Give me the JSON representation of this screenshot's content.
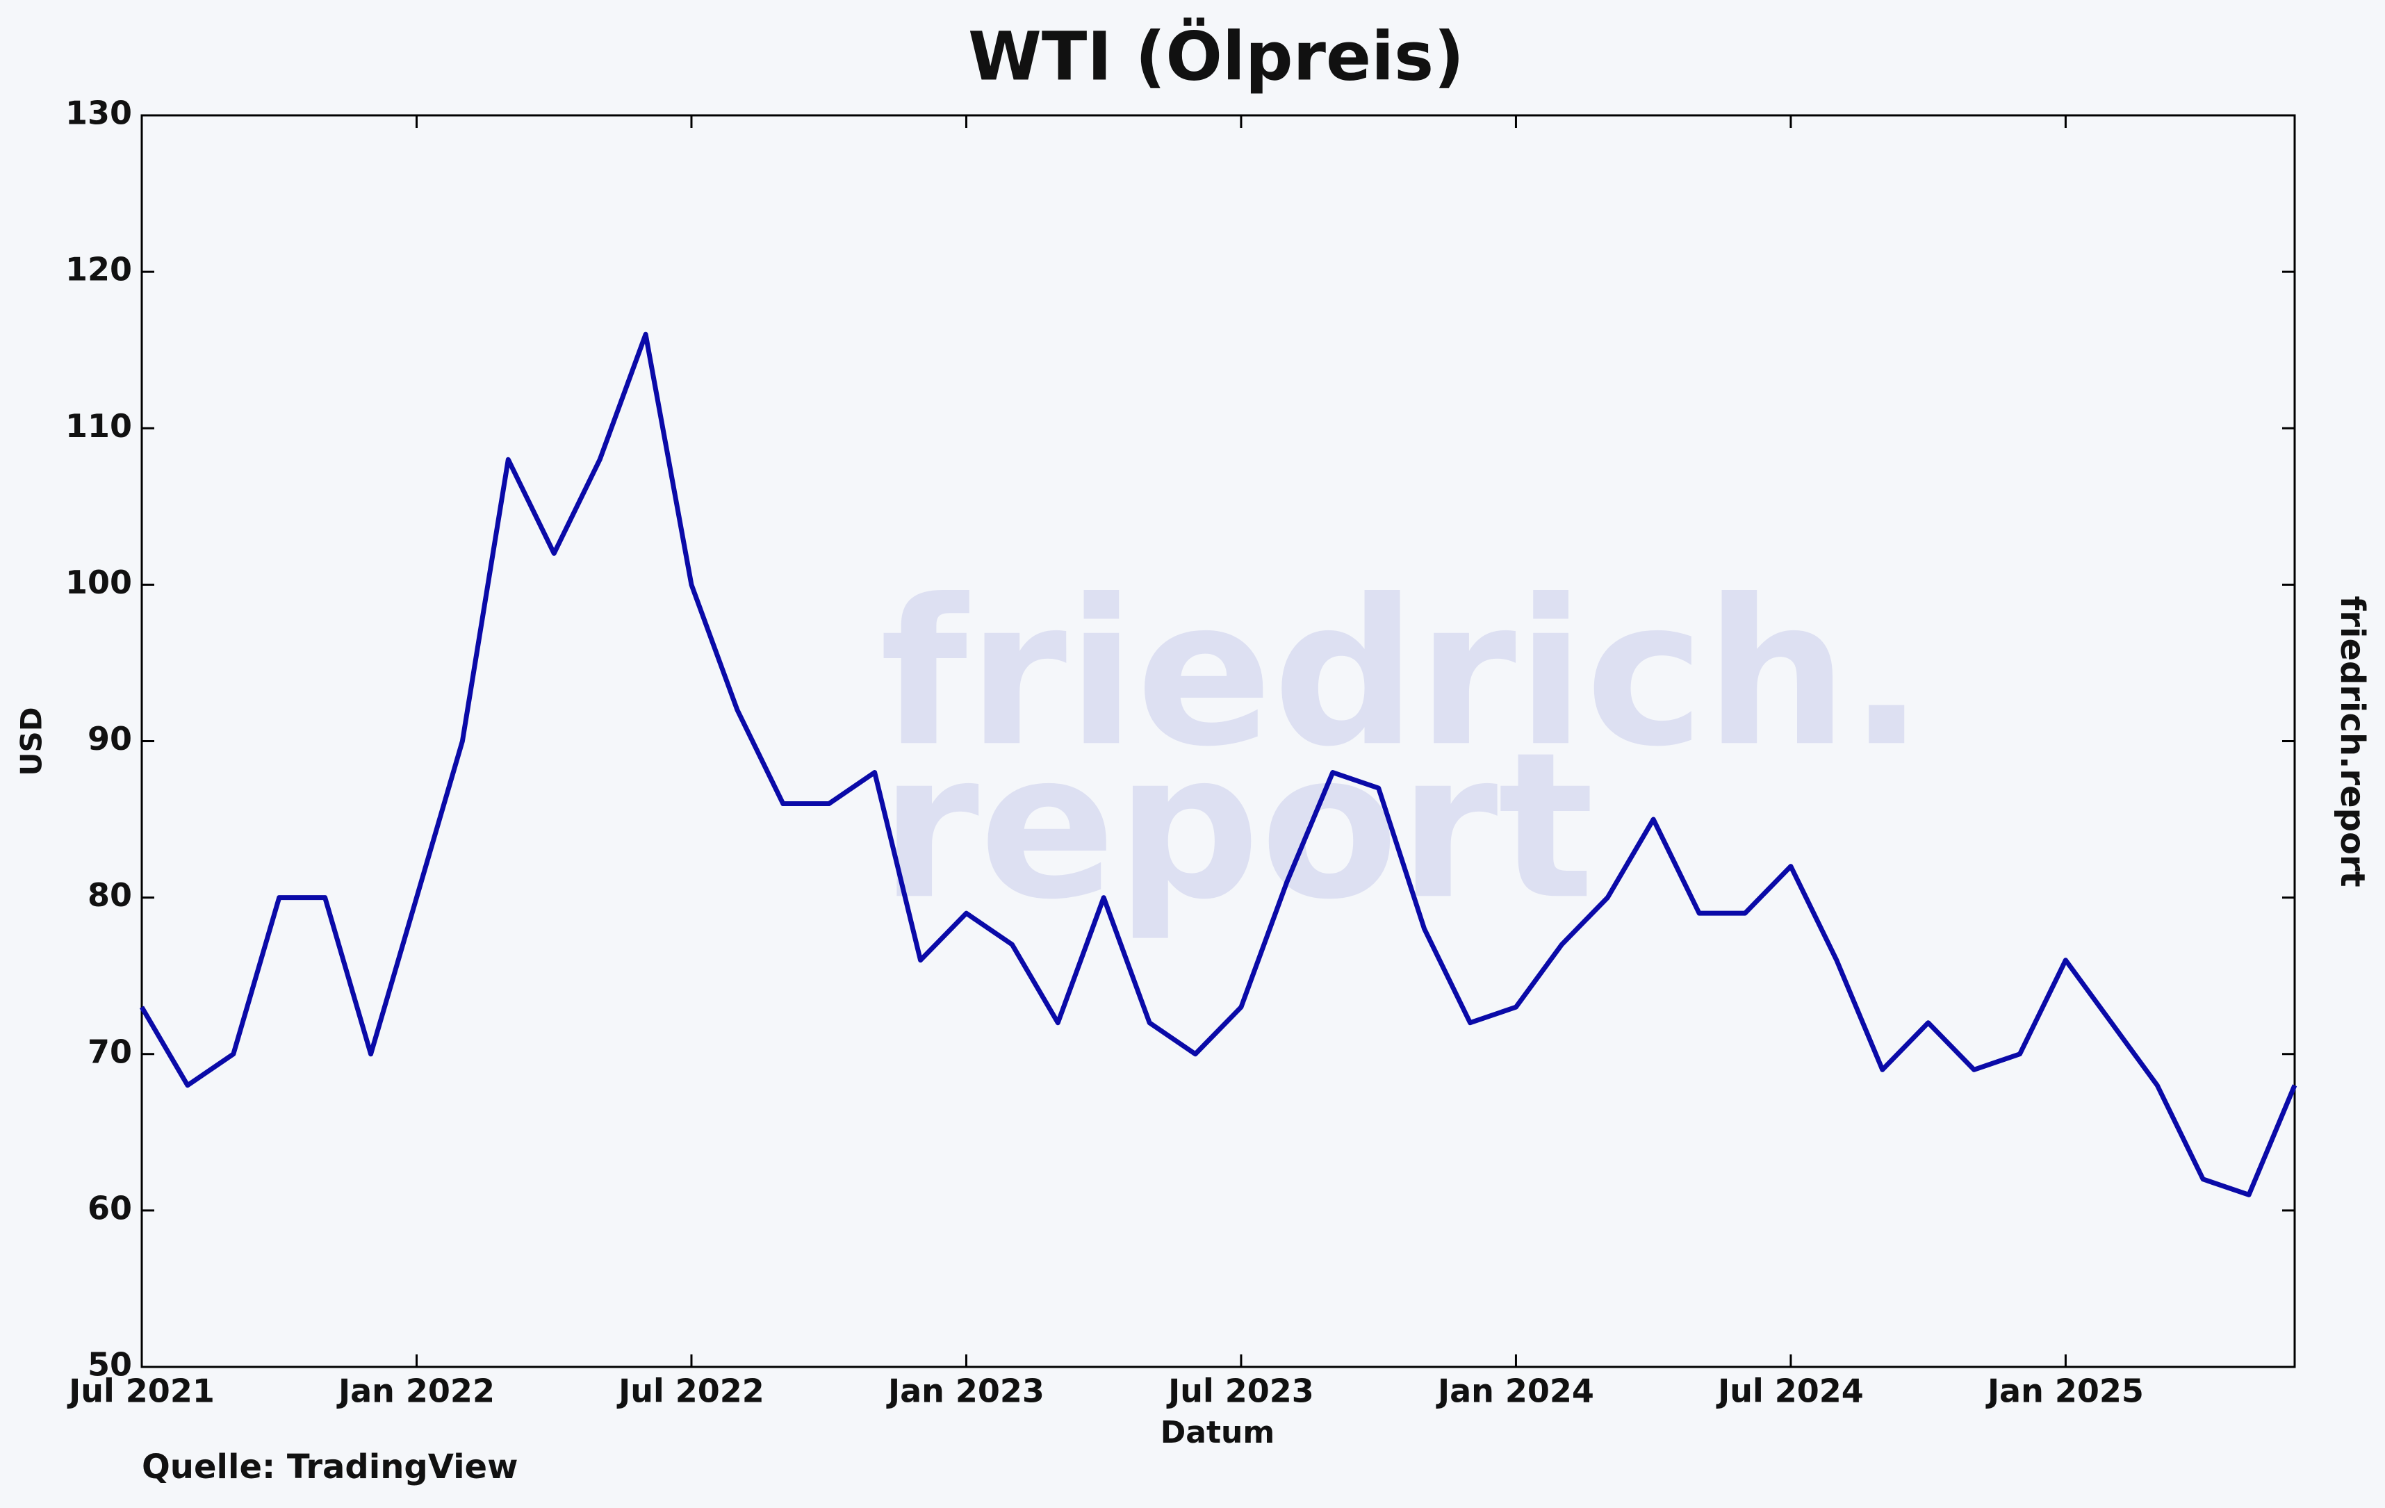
{
  "chart_data": {
    "type": "line",
    "title": "WTI (Ölpreis)",
    "y_label": "USD",
    "x_label": "Datum",
    "source": "Quelle: TradingView",
    "side_label": "friedrich.report",
    "watermark": [
      "friedrich.",
      "report"
    ],
    "x": [
      "2021-07",
      "2021-08",
      "2021-09",
      "2021-10",
      "2021-11",
      "2021-12",
      "2022-01",
      "2022-02",
      "2022-03",
      "2022-04",
      "2022-05",
      "2022-06",
      "2022-07",
      "2022-08",
      "2022-09",
      "2022-10",
      "2022-11",
      "2022-12",
      "2023-01",
      "2023-02",
      "2023-03",
      "2023-04",
      "2023-05",
      "2023-06",
      "2023-07",
      "2023-08",
      "2023-09",
      "2023-10",
      "2023-11",
      "2023-12",
      "2024-01",
      "2024-02",
      "2024-03",
      "2024-04",
      "2024-05",
      "2024-06",
      "2024-07",
      "2024-08",
      "2024-09",
      "2024-10",
      "2024-11",
      "2024-12",
      "2025-01",
      "2025-02",
      "2025-03",
      "2025-04",
      "2025-05",
      "2025-06"
    ],
    "series": [
      {
        "name": "WTI",
        "color": "#0a0aa8",
        "values": [
          73,
          68,
          70,
          80,
          80,
          70,
          80,
          90,
          108,
          102,
          108,
          116,
          100,
          92,
          86,
          86,
          88,
          76,
          79,
          77,
          72,
          80,
          72,
          70,
          73,
          81,
          88,
          87,
          78,
          72,
          73,
          77,
          80,
          85,
          79,
          79,
          82,
          76,
          69,
          72,
          69,
          70,
          76,
          72,
          68,
          62,
          61,
          68
        ]
      }
    ],
    "xlim": [
      "2021-07",
      "2025-06"
    ],
    "xticks": [
      {
        "value": "2021-07",
        "label": "Jul 2021"
      },
      {
        "value": "2022-01",
        "label": "Jan 2022"
      },
      {
        "value": "2022-07",
        "label": "Jul 2022"
      },
      {
        "value": "2023-01",
        "label": "Jan 2023"
      },
      {
        "value": "2023-07",
        "label": "Jul 2023"
      },
      {
        "value": "2024-01",
        "label": "Jan 2024"
      },
      {
        "value": "2024-07",
        "label": "Jul 2024"
      },
      {
        "value": "2025-01",
        "label": "Jan 2025"
      }
    ],
    "ylim": [
      50,
      130
    ],
    "yticks": [
      50,
      60,
      70,
      80,
      90,
      100,
      110,
      120,
      130
    ]
  }
}
